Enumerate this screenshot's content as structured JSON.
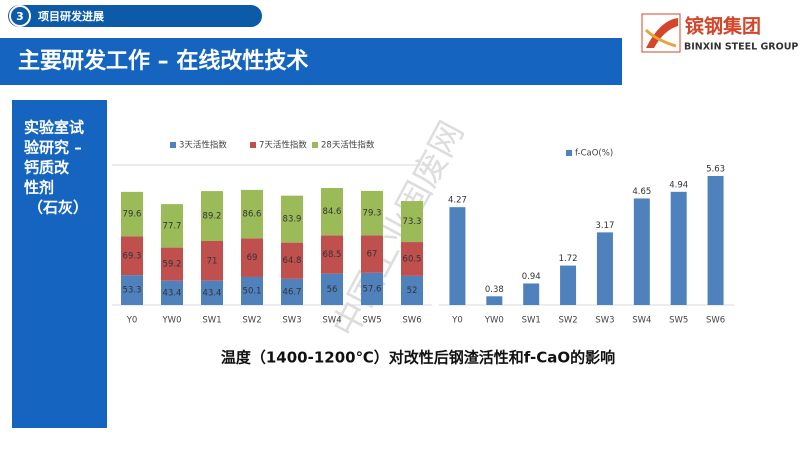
{
  "header": {
    "number": "3",
    "section": "项目研发进展"
  },
  "title": "主要研发工作 – 在线改性技术",
  "logo": {
    "name": "镔钢集团",
    "subtitle": "BINXIN STEEL GROUP"
  },
  "sidebar": [
    "实验室试",
    "验研究 –",
    "钙质改",
    "性剂",
    "（石灰）"
  ],
  "caption": "温度（1400-1200℃）对改性后钢渣活性和f-CaO的影响",
  "watermark": "中国工业固废网",
  "chart_data": [
    {
      "type": "stacked_bar",
      "categories": [
        "Y0",
        "YW0",
        "SW1",
        "SW2",
        "SW3",
        "SW4",
        "SW5",
        "SW6"
      ],
      "series": [
        {
          "name": "3天活性指数",
          "color": "#4f81bd",
          "values": [
            53.3,
            43.4,
            43.4,
            50.1,
            46.7,
            56,
            57.6,
            52
          ]
        },
        {
          "name": "7天活性指数",
          "color": "#c0504d",
          "values": [
            69.3,
            59.2,
            71,
            69,
            64.8,
            68.5,
            67,
            60.5
          ]
        },
        {
          "name": "28天活性指数",
          "color": "#9bbb59",
          "values": [
            79.6,
            77.7,
            89.2,
            86.6,
            83.9,
            84.6,
            79.3,
            73.3
          ]
        }
      ]
    },
    {
      "type": "bar",
      "categories": [
        "Y0",
        "YW0",
        "SW1",
        "SW2",
        "SW3",
        "SW4",
        "SW5",
        "SW6"
      ],
      "series": [
        {
          "name": "f-CaO(%)",
          "color": "#4f81bd",
          "values": [
            4.27,
            0.38,
            0.94,
            1.72,
            3.17,
            4.65,
            4.94,
            5.63
          ]
        }
      ]
    }
  ]
}
